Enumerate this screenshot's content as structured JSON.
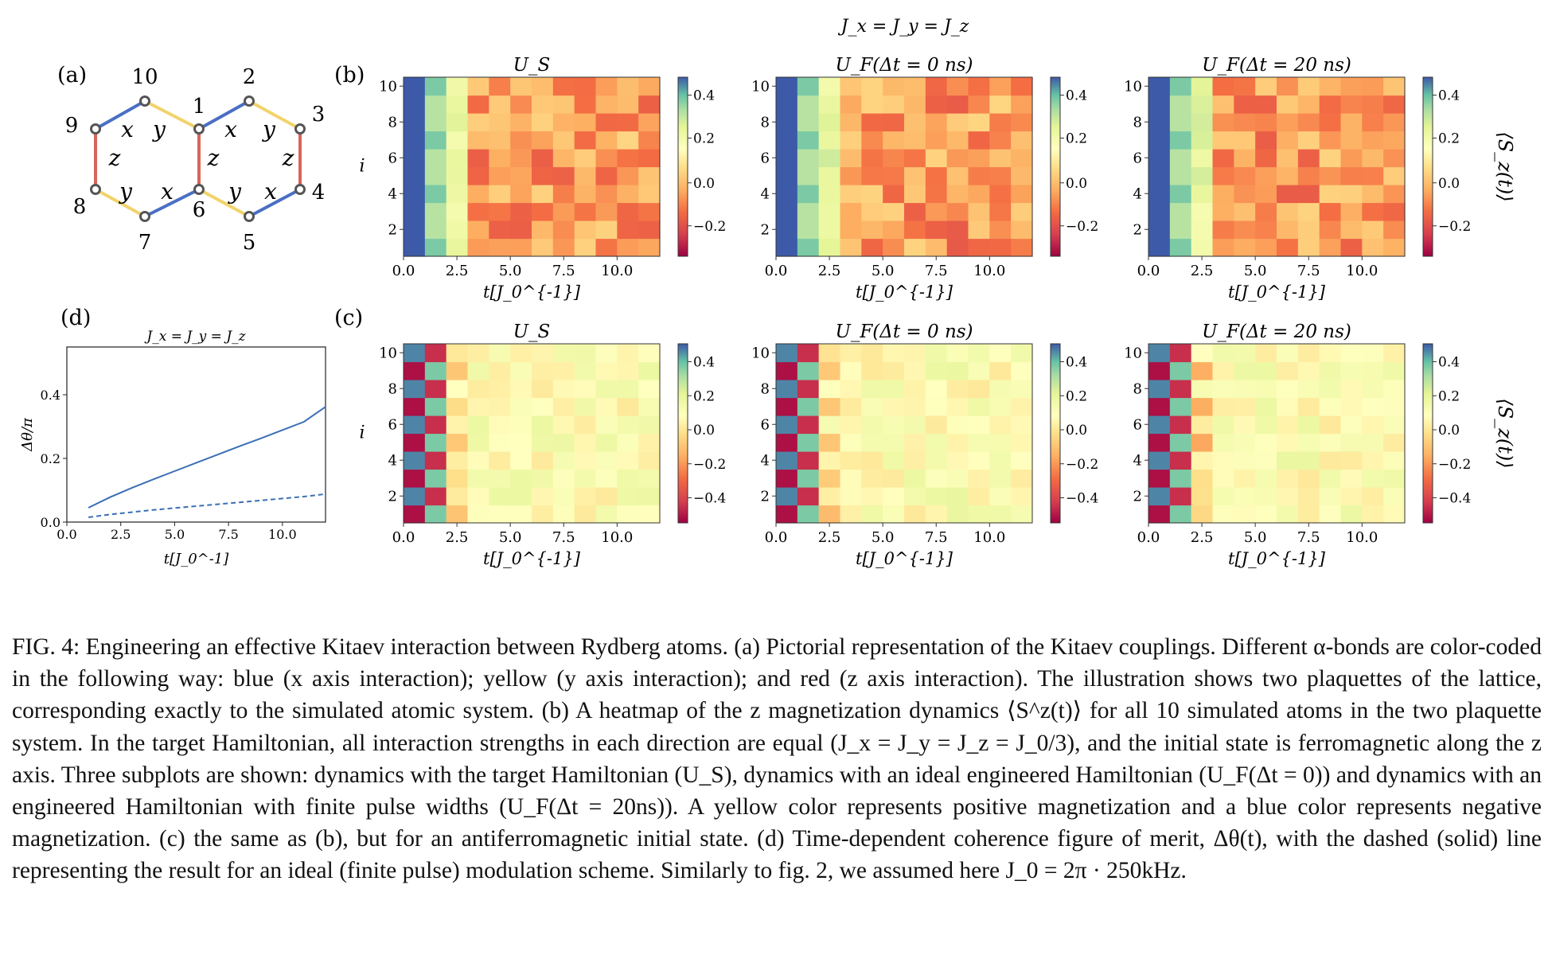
{
  "figure_title": "J_x = J_y = J_z",
  "panel_labels": {
    "a": "(a)",
    "b": "(b)",
    "c": "(c)",
    "d": "(d)"
  },
  "lattice": {
    "nodes": [
      {
        "label": "10"
      },
      {
        "label": "2"
      },
      {
        "label": "9"
      },
      {
        "label": "1"
      },
      {
        "label": "3"
      },
      {
        "label": "8"
      },
      {
        "label": "6"
      },
      {
        "label": "4"
      },
      {
        "label": "7"
      },
      {
        "label": "5"
      }
    ],
    "bond_labels": [
      "x",
      "y",
      "x",
      "y",
      "z",
      "z",
      "z",
      "y",
      "x",
      "y",
      "x"
    ],
    "colors": {
      "x": "#4a6fc4",
      "y": "#f2d36b",
      "z": "#d9645a"
    }
  },
  "heatmap_titles": [
    "U_S",
    "U_F(Δt = 0 ns)",
    "U_F(Δt = 20 ns)"
  ],
  "heatmap_axes": {
    "xlabel": "t[J_0^{-1}]",
    "ylabel": "i",
    "xticks": [
      "0.0",
      "2.5",
      "5.0",
      "7.5",
      "10.0"
    ],
    "yticks": [
      "2",
      "4",
      "6",
      "8",
      "10"
    ],
    "colorbar_label": "⟨S_z(t)⟩",
    "colorbar_ticks_b": [
      "0.4",
      "0.2",
      "0.0",
      "−0.2"
    ],
    "colorbar_ticks_c": [
      "0.4",
      "0.2",
      "0.0",
      "−0.2",
      "−0.4"
    ]
  },
  "chart_data": [
    {
      "panel": "d",
      "type": "line",
      "title": "J_x = J_y = J_z",
      "xlabel": "t[J_0^-1]",
      "ylabel": "Δθ/π",
      "xlim": [
        0,
        12
      ],
      "ylim": [
        0,
        0.55
      ],
      "xticks": [
        "0.0",
        "2.5",
        "5.0",
        "7.5",
        "10.0"
      ],
      "yticks": [
        "0.0",
        "0.2",
        "0.4"
      ],
      "series": [
        {
          "style": "solid",
          "x": [
            1,
            2,
            3,
            4,
            5,
            6,
            7,
            8,
            9,
            10,
            11,
            12
          ],
          "y": [
            0.045,
            0.078,
            0.107,
            0.134,
            0.16,
            0.186,
            0.212,
            0.238,
            0.263,
            0.289,
            0.315,
            0.362
          ]
        },
        {
          "style": "dashed",
          "x": [
            1,
            2,
            3,
            4,
            5,
            6,
            7,
            8,
            9,
            10,
            11,
            12
          ],
          "y": [
            0.015,
            0.024,
            0.031,
            0.038,
            0.044,
            0.05,
            0.056,
            0.062,
            0.068,
            0.074,
            0.08,
            0.088
          ]
        }
      ]
    }
  ],
  "caption": "FIG. 4: Engineering an effective Kitaev interaction between Rydberg atoms. (a) Pictorial representation of the Kitaev couplings. Different α-bonds are color-coded in the following way: blue (x axis interaction); yellow (y axis interaction); and red (z axis interaction). The illustration shows two plaquettes of the lattice, corresponding exactly to the simulated atomic system. (b) A heatmap of the z magnetization dynamics ⟨S^z(t)⟩ for all 10 simulated atoms in the two plaquette system. In the target Hamiltonian, all interaction strengths in each direction are equal (J_x = J_y = J_z = J_0/3), and the initial state is ferromagnetic along the z axis. Three subplots are shown: dynamics with the target Hamiltonian (U_S), dynamics with an ideal engineered Hamiltonian (U_F(Δt = 0)) and dynamics with an engineered Hamiltonian with finite pulse widths (U_F(Δt = 20ns)). A yellow color represents positive magnetization and a blue color represents negative magnetization. (c) the same as (b), but for an antiferromagnetic initial state. (d) Time-dependent coherence figure of merit, Δθ(t), with the dashed (solid) line representing the result for an ideal (finite pulse) modulation scheme. Similarly to fig. 2, we assumed here J_0 = 2π · 250kHz."
}
